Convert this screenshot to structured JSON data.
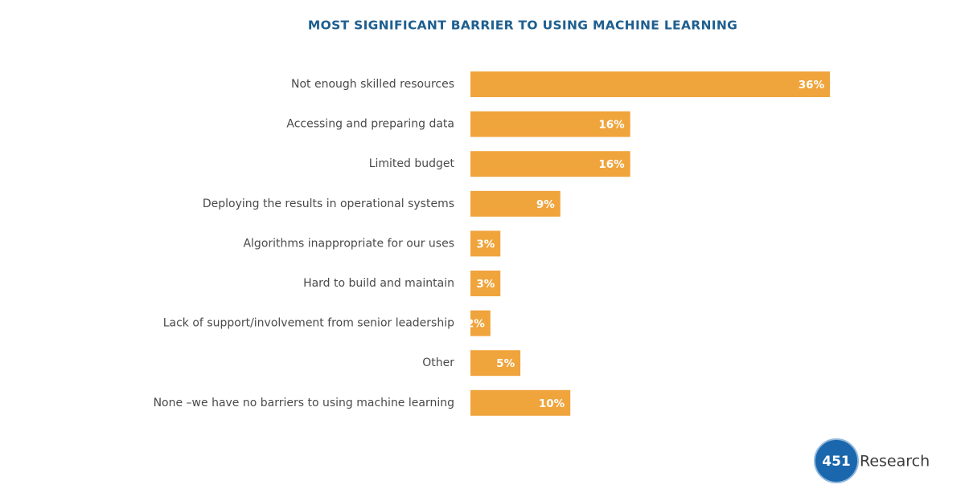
{
  "chart_data": {
    "type": "barh",
    "title": "MOST SIGNIFICANT BARRIER TO USING MACHINE LEARNING",
    "categories": [
      "Not enough skilled resources",
      "Accessing and preparing data",
      "Limited budget",
      "Deploying the results in operational systems",
      "Algorithms inappropriate for our uses",
      "Hard to build and maintain",
      "Lack of support/involvement from senior leadership",
      "Other",
      "None –we have no barriers to using machine learning"
    ],
    "values": [
      36,
      16,
      16,
      9,
      3,
      3,
      2,
      5,
      10
    ],
    "value_labels": [
      "36%",
      "16%",
      "16%",
      "9%",
      "3%",
      "3%",
      "2%",
      "5%",
      "10%"
    ],
    "color": "#f0a43c"
  },
  "logo": {
    "mark": "451",
    "name": "Research"
  }
}
